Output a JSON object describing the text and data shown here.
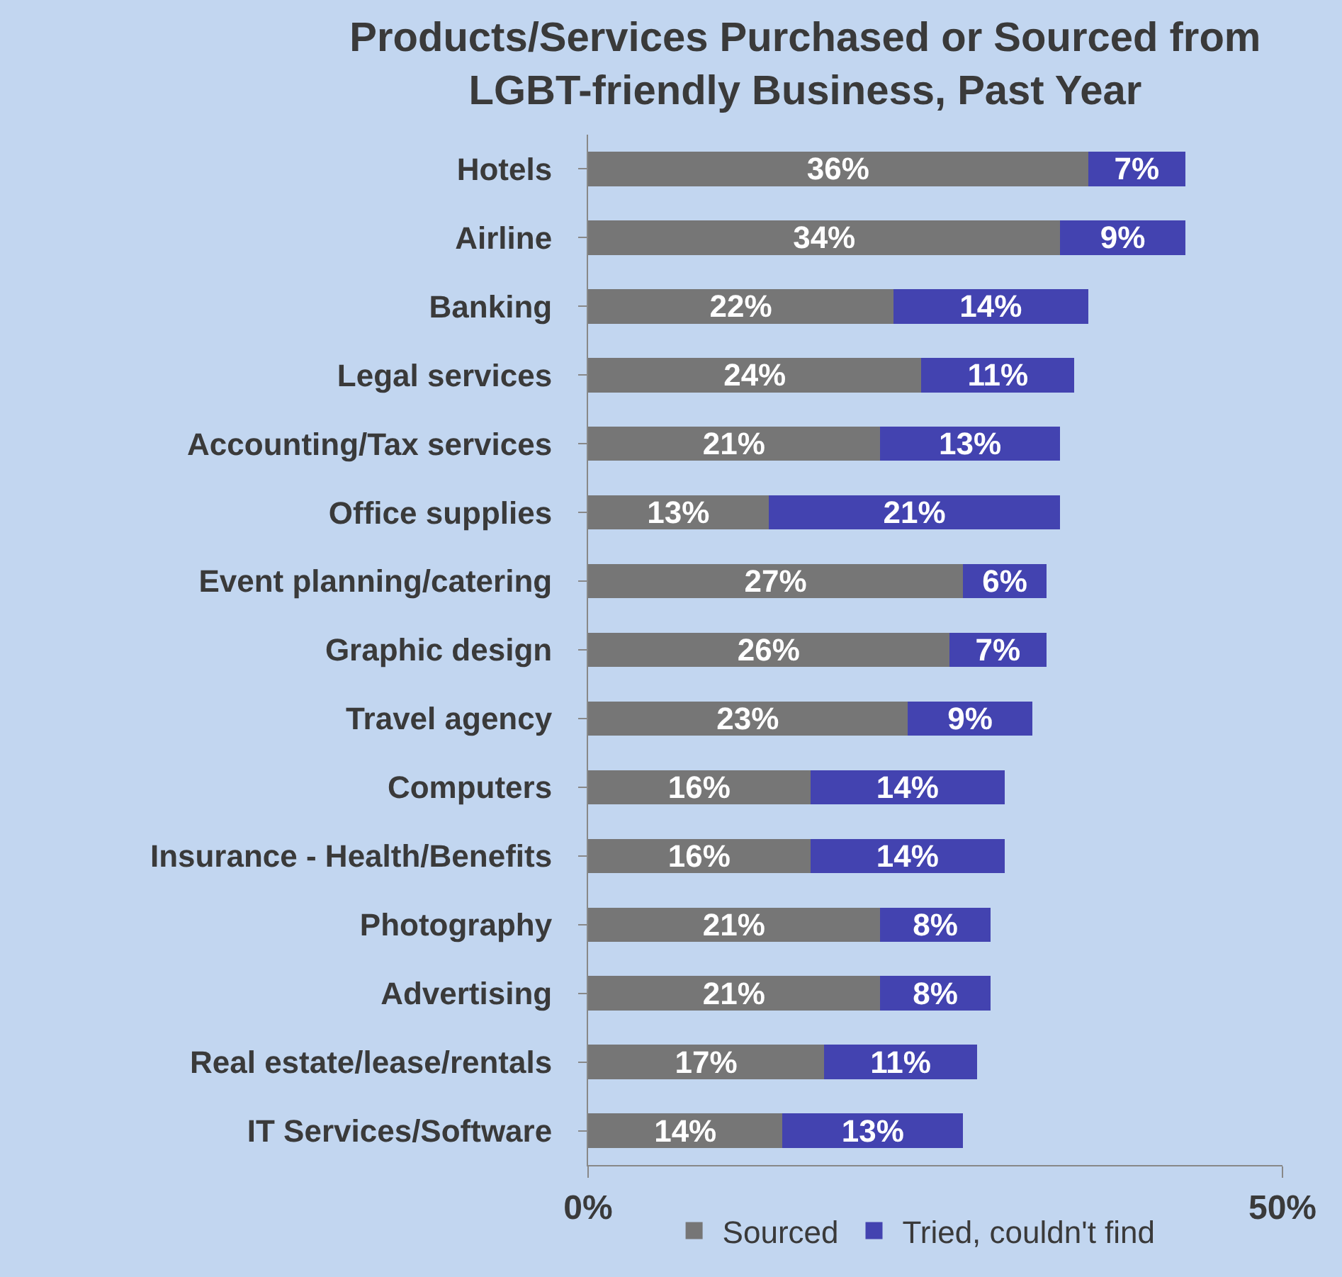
{
  "chart_data": {
    "type": "bar",
    "orientation": "horizontal",
    "stacked": true,
    "title": "Products/Services Purchased or Sourced from LGBT-friendly Business, Past Year",
    "categories": [
      "Hotels",
      "Airline",
      "Banking",
      "Legal services",
      "Accounting/Tax services",
      "Office supplies",
      "Event planning/catering",
      "Graphic design",
      "Travel agency",
      "Computers",
      "Insurance - Health/Benefits",
      "Photography",
      "Advertising",
      "Real estate/lease/rentals",
      "IT Services/Software"
    ],
    "series": [
      {
        "name": "Sourced",
        "color": "#767676",
        "values": [
          36,
          34,
          22,
          24,
          21,
          13,
          27,
          26,
          23,
          16,
          16,
          21,
          21,
          17,
          14
        ],
        "value_labels": [
          "36%",
          "34%",
          "22%",
          "24%",
          "21%",
          "13%",
          "27%",
          "26%",
          "23%",
          "16%",
          "16%",
          "21%",
          "21%",
          "17%",
          "14%"
        ]
      },
      {
        "name": "Tried, couldn't find",
        "color": "#4343b0",
        "values": [
          7,
          9,
          14,
          11,
          13,
          21,
          6,
          7,
          9,
          14,
          14,
          8,
          8,
          11,
          13
        ],
        "value_labels": [
          "7%",
          "9%",
          "14%",
          "11%",
          "13%",
          "21%",
          "6%",
          "7%",
          "9%",
          "14%",
          "14%",
          "8%",
          "8%",
          "11%",
          "13%"
        ]
      }
    ],
    "xlim": [
      0,
      50
    ],
    "xticks": [
      {
        "value": 0,
        "label": "0%"
      },
      {
        "value": 50,
        "label": "50%"
      }
    ],
    "grid": false,
    "legend": "bottom"
  }
}
